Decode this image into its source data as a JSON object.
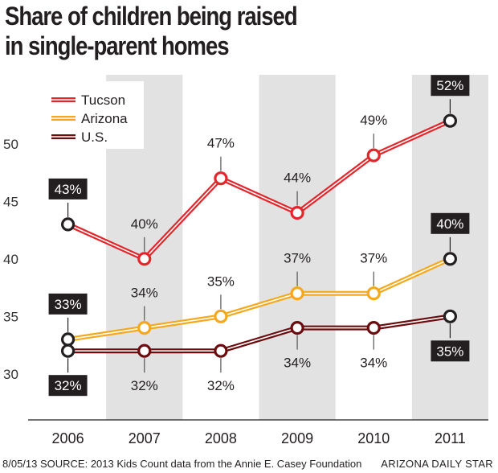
{
  "chart_data": {
    "type": "line",
    "title_line1": "Share of children being raised",
    "title_line2": "in single-parent homes",
    "categories": [
      "2006",
      "2007",
      "2008",
      "2009",
      "2010",
      "2011"
    ],
    "ylim": [
      26,
      56
    ],
    "yticks": [
      30,
      35,
      40,
      45,
      50
    ],
    "shaded_columns": [
      "2007",
      "2009",
      "2011"
    ],
    "legend_position": "top-left",
    "series": [
      {
        "name": "Tucson",
        "color": "#e3262b",
        "values": [
          43,
          40,
          47,
          44,
          49,
          52
        ],
        "labels": [
          "43%",
          "40%",
          "47%",
          "44%",
          "49%",
          "52%"
        ],
        "label_side": [
          "above",
          "above",
          "above",
          "above",
          "above",
          "above"
        ],
        "label_boxed": [
          true,
          false,
          false,
          false,
          false,
          true
        ]
      },
      {
        "name": "Arizona",
        "color": "#f5a81c",
        "values": [
          33,
          34,
          35,
          37,
          37,
          40
        ],
        "labels": [
          "33%",
          "34%",
          "35%",
          "37%",
          "37%",
          "40%"
        ],
        "label_side": [
          "above",
          "above",
          "above",
          "above",
          "above",
          "above"
        ],
        "label_boxed": [
          true,
          false,
          false,
          false,
          false,
          true
        ]
      },
      {
        "name": "U.S.",
        "color": "#6b0d0f",
        "values": [
          32,
          32,
          32,
          34,
          34,
          35
        ],
        "labels": [
          "32%",
          "32%",
          "32%",
          "34%",
          "34%",
          "35%"
        ],
        "label_side": [
          "below",
          "below",
          "below",
          "below",
          "below",
          "below"
        ],
        "label_boxed": [
          true,
          false,
          false,
          false,
          false,
          true
        ]
      }
    ]
  },
  "footer": {
    "source": "8/05/13  SOURCE: 2013 Kids Count data from the Annie E. Casey Foundation",
    "credit": "ARIZONA DAILY STAR"
  }
}
